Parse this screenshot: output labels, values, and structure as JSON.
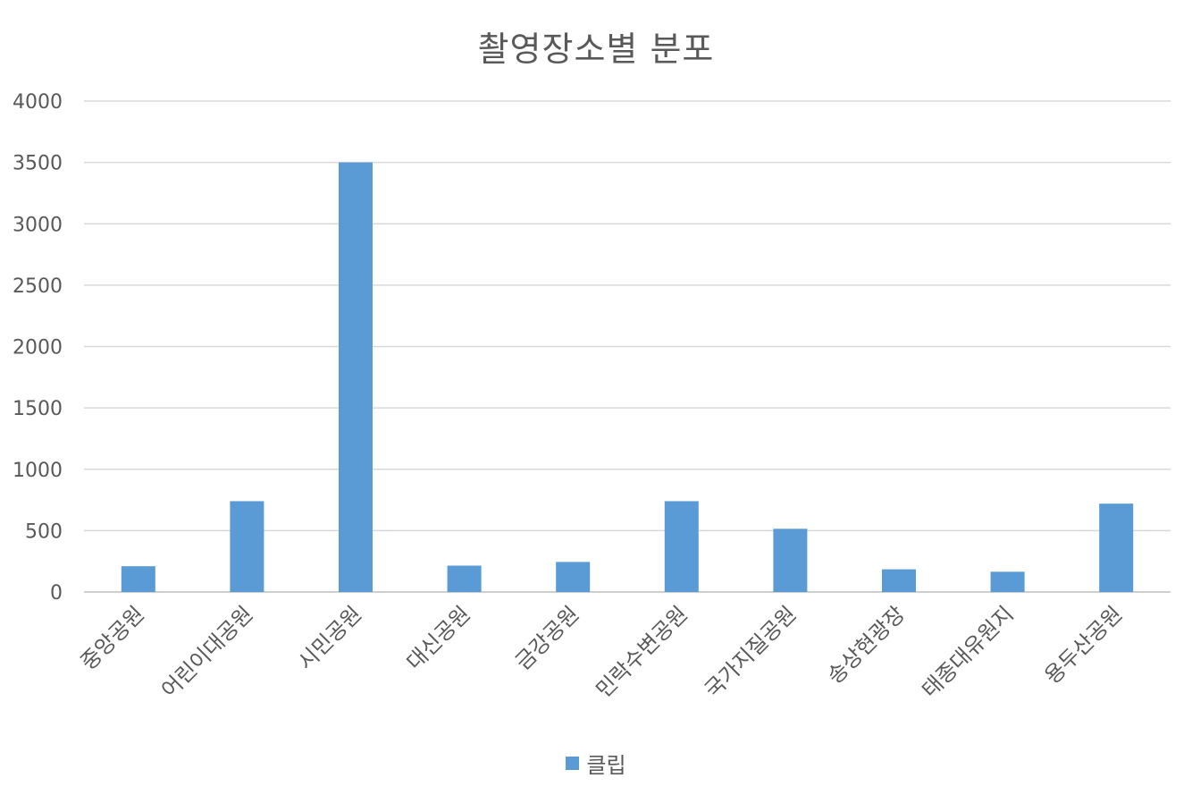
{
  "chart_data": {
    "type": "bar",
    "title": "촬영장소별 분포",
    "xlabel": "",
    "ylabel": "",
    "categories": [
      "중앙공원",
      "어린이대공원",
      "시민공원",
      "대신공원",
      "금강공원",
      "민락수변공원",
      "국가지질공원",
      "송상현광장",
      "태종대유원지",
      "용두산공원"
    ],
    "series": [
      {
        "name": "클립",
        "color": "#5B9BD5",
        "values": [
          210,
          740,
          3500,
          215,
          245,
          740,
          515,
          185,
          165,
          720
        ]
      }
    ],
    "ylim": [
      0,
      4000
    ],
    "yticks": [
      0,
      500,
      1000,
      1500,
      2000,
      2500,
      3000,
      3500,
      4000
    ],
    "grid": true,
    "legend_position": "bottom"
  }
}
